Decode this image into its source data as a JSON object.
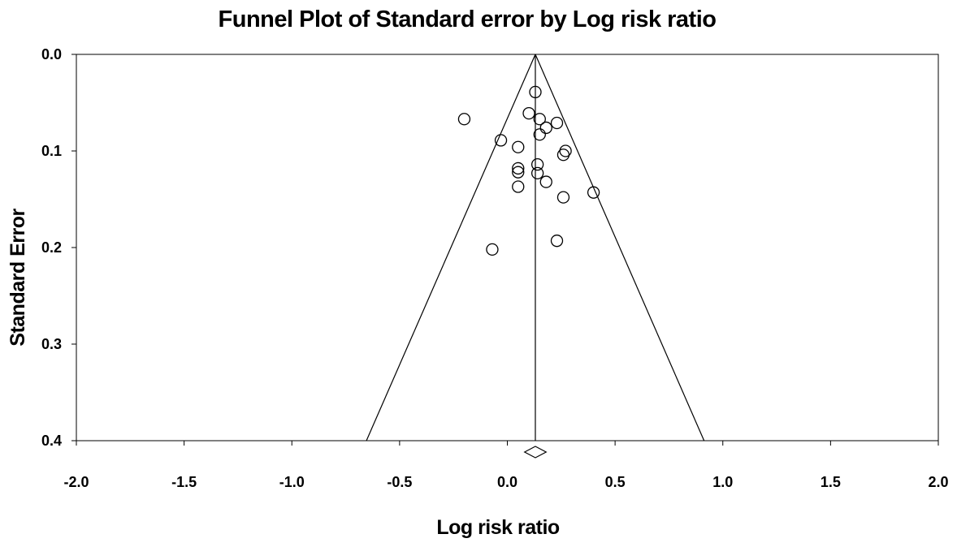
{
  "chart_data": {
    "type": "scatter",
    "subtype": "funnel-plot",
    "title": "Funnel Plot of Standard error by Log risk ratio",
    "xlabel": "Log risk ratio",
    "ylabel": "Standard Error",
    "xlim": [
      -2.0,
      2.0
    ],
    "ylim": [
      0.0,
      0.4
    ],
    "y_inverted": true,
    "xticks": [
      "-2.0",
      "-1.5",
      "-1.0",
      "-0.5",
      "0.0",
      "0.5",
      "1.0",
      "1.5",
      "2.0"
    ],
    "yticks": [
      "0.0",
      "0.1",
      "0.2",
      "0.3",
      "0.4"
    ],
    "grid": false,
    "pooled_estimate": 0.13,
    "funnel_se_max": 0.4,
    "funnel_limits_at_se_max": [
      -0.654,
      0.913
    ],
    "summary_diamond": {
      "center": 0.13,
      "lower": 0.08,
      "upper": 0.18
    },
    "points": [
      {
        "x": 0.13,
        "y": 0.039
      },
      {
        "x": 0.1,
        "y": 0.061
      },
      {
        "x": -0.2,
        "y": 0.067
      },
      {
        "x": 0.15,
        "y": 0.067
      },
      {
        "x": 0.23,
        "y": 0.071
      },
      {
        "x": 0.18,
        "y": 0.076
      },
      {
        "x": 0.15,
        "y": 0.083
      },
      {
        "x": -0.03,
        "y": 0.089
      },
      {
        "x": 0.05,
        "y": 0.096
      },
      {
        "x": 0.27,
        "y": 0.1
      },
      {
        "x": 0.26,
        "y": 0.104
      },
      {
        "x": 0.14,
        "y": 0.114
      },
      {
        "x": 0.05,
        "y": 0.118
      },
      {
        "x": 0.05,
        "y": 0.122
      },
      {
        "x": 0.14,
        "y": 0.123
      },
      {
        "x": 0.18,
        "y": 0.132
      },
      {
        "x": 0.05,
        "y": 0.137
      },
      {
        "x": 0.4,
        "y": 0.143
      },
      {
        "x": 0.26,
        "y": 0.148
      },
      {
        "x": 0.23,
        "y": 0.193
      },
      {
        "x": -0.07,
        "y": 0.202
      }
    ]
  }
}
